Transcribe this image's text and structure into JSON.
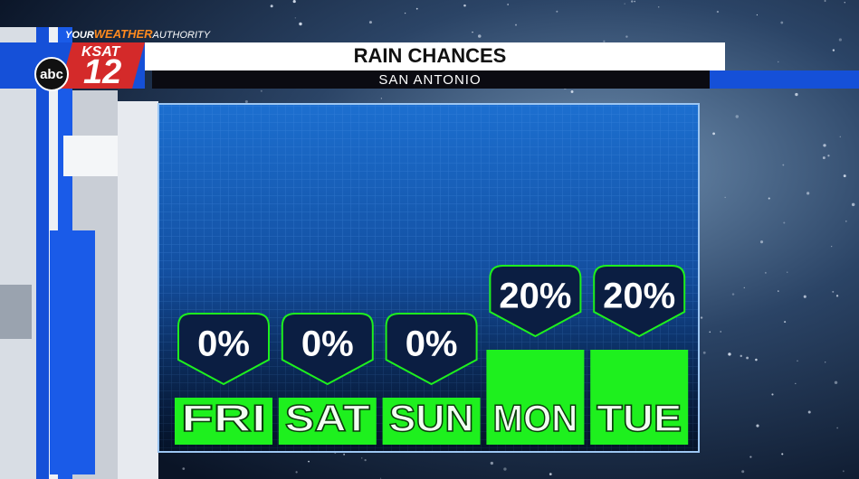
{
  "branding": {
    "tagline_1": "YOUR",
    "tagline_2": "WEATHER",
    "tagline_3": "AUTHORITY",
    "station": "KSAT",
    "channel": "12",
    "network": "abc"
  },
  "chart_data": {
    "type": "bar",
    "title": "RAIN CHANCES",
    "subtitle": "SAN ANTONIO",
    "categories": [
      "FRI",
      "SAT",
      "SUN",
      "MON",
      "TUE"
    ],
    "values": [
      0,
      0,
      0,
      20,
      20
    ],
    "value_labels": [
      "0%",
      "0%",
      "0%",
      "20%",
      "20%"
    ],
    "color": "#1ef01e"
  }
}
